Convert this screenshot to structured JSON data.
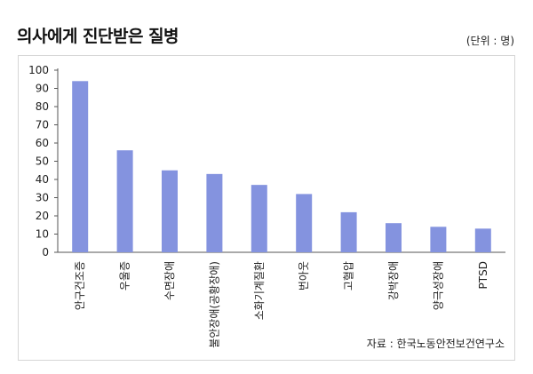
{
  "title": "의사에게 진단받은 질병",
  "unit": "(단위 : 명)",
  "source": "자료 : 한국노동안전보건연구소",
  "colors": {
    "bar": "#8493df",
    "axis": "#555555",
    "text": "#222222"
  },
  "chart_data": {
    "type": "bar",
    "title": "의사에게 진단받은 질병",
    "xlabel": "",
    "ylabel": "",
    "ylim": [
      0,
      100
    ],
    "yticks": [
      0,
      10,
      20,
      30,
      40,
      50,
      60,
      70,
      80,
      90,
      100
    ],
    "grid": false,
    "categories": [
      "안구건조증",
      "우울증",
      "수면장애",
      "불안장애(공황장애)",
      "소화기계질환",
      "번아웃",
      "고혈압",
      "강박장애",
      "양극성장애",
      "PTSD"
    ],
    "values": [
      94,
      56,
      45,
      43,
      37,
      32,
      22,
      16,
      14,
      13
    ]
  }
}
